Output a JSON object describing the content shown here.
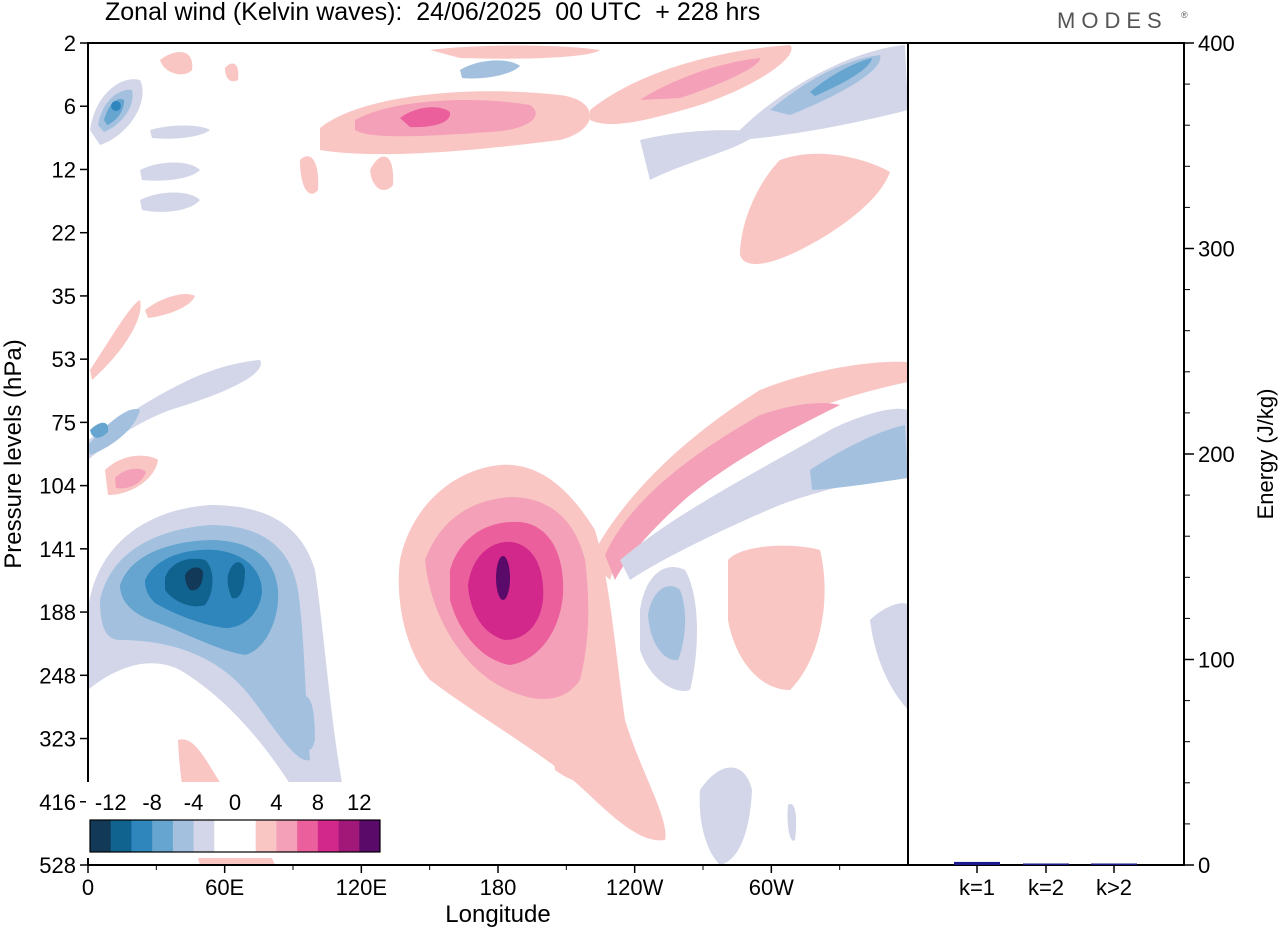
{
  "title": "Zonal wind (Kelvin waves):  24/06/2025  00 UTC  + 228 hrs",
  "brand": "MODES",
  "chart_data": [
    {
      "type": "heatmap",
      "title": "Zonal wind (Kelvin waves):  24/06/2025  00 UTC  + 228 hrs",
      "xlabel": "Longitude",
      "ylabel": "Pressure levels (hPa)",
      "x_ticks": [
        "0",
        "60E",
        "120E",
        "180",
        "120W",
        "60W"
      ],
      "y_ticks": [
        "2",
        "6",
        "12",
        "22",
        "35",
        "53",
        "75",
        "104",
        "141",
        "188",
        "248",
        "323",
        "416",
        "528"
      ],
      "colorbar": {
        "labels": [
          "-12",
          "-8",
          "-4",
          "0",
          "4",
          "8",
          "12"
        ],
        "colors": [
          "#123a58",
          "#10628f",
          "#2e86bd",
          "#66a5cf",
          "#a3c1df",
          "#d2d6e8",
          "#ffffff",
          "#ffffff",
          "#f9c6c4",
          "#f4a0b8",
          "#ea5f9c",
          "#d2278b",
          "#a21879",
          "#5a0b69"
        ]
      },
      "features": [
        {
          "name": "upper-tropospheric westerly maximum",
          "lon": 180,
          "level_hPa": 160,
          "value": 12
        },
        {
          "name": "upper-tropospheric easterly maximum",
          "lon": 45,
          "level_hPa": 160,
          "value": -10
        }
      ]
    },
    {
      "type": "bar",
      "categories": [
        "k=1",
        "k=2",
        "k>2"
      ],
      "values": [
        1.5,
        0.7,
        0.5
      ],
      "ylabel": "Energy (J/kg)",
      "ylim": [
        0,
        400
      ],
      "y_ticks": [
        "0",
        "100",
        "200",
        "300",
        "400"
      ],
      "bar_color": "#1a1a8c"
    }
  ]
}
